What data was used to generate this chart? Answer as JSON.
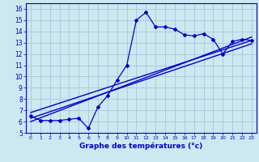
{
  "xlabel": "Graphe des températures (°c)",
  "bg_color": "#cce8f0",
  "grid_color": "#aaccdd",
  "line_color": "#0000cc",
  "xlim": [
    -0.5,
    23.5
  ],
  "ylim": [
    5,
    16.5
  ],
  "xticks": [
    0,
    1,
    2,
    3,
    4,
    5,
    6,
    7,
    8,
    9,
    10,
    11,
    12,
    13,
    14,
    15,
    16,
    17,
    18,
    19,
    20,
    21,
    22,
    23
  ],
  "yticks": [
    5,
    6,
    7,
    8,
    9,
    10,
    11,
    12,
    13,
    14,
    15,
    16
  ],
  "temp_x": [
    0,
    1,
    2,
    3,
    4,
    5,
    6,
    7,
    8,
    9,
    10,
    11,
    12,
    13,
    14,
    15,
    16,
    17,
    18,
    19,
    20,
    21,
    22,
    23
  ],
  "temp_y": [
    6.5,
    6.1,
    6.1,
    6.1,
    6.2,
    6.3,
    5.4,
    7.3,
    8.3,
    9.7,
    11.0,
    15.0,
    15.7,
    14.4,
    14.4,
    14.2,
    13.7,
    13.6,
    13.8,
    13.3,
    12.0,
    13.1,
    13.3,
    13.2
  ],
  "line2_x": [
    0,
    23
  ],
  "line2_y": [
    6.8,
    13.2
  ],
  "line3_x": [
    0,
    23
  ],
  "line3_y": [
    6.3,
    12.9
  ],
  "line4_x": [
    0,
    23
  ],
  "line4_y": [
    6.0,
    13.5
  ]
}
